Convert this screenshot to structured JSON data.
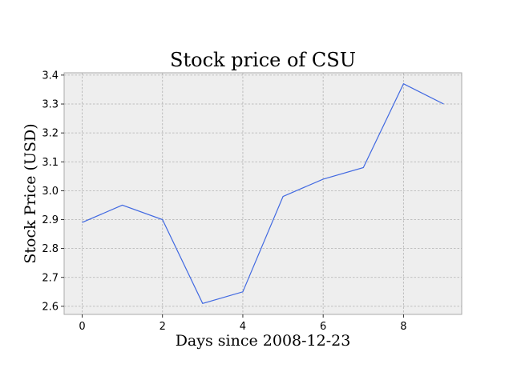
{
  "chart_data": {
    "type": "line",
    "title": "Stock price of CSU",
    "xlabel": "Days since 2008-12-23",
    "ylabel": "Stock Price (USD)",
    "x": [
      0,
      1,
      2,
      3,
      4,
      5,
      6,
      7,
      8,
      9
    ],
    "series": [
      {
        "values": [
          2.89,
          2.95,
          2.9,
          2.61,
          2.65,
          2.98,
          3.04,
          3.08,
          3.37,
          3.3
        ]
      }
    ],
    "xlim": [
      -0.45,
      9.45
    ],
    "ylim": [
      2.572,
      3.408
    ],
    "xticks": [
      0,
      2,
      4,
      6,
      8
    ],
    "xtick_labels": [
      "0",
      "2",
      "4",
      "6",
      "8"
    ],
    "yticks": [
      2.6,
      2.7,
      2.8,
      2.9,
      3.0,
      3.1,
      3.2,
      3.3,
      3.4
    ],
    "ytick_labels": [
      "2.6",
      "2.7",
      "2.8",
      "2.9",
      "3.0",
      "3.1",
      "3.2",
      "3.3",
      "3.4"
    ],
    "grid": true,
    "line_color": "#4169e1",
    "plot_background": "#eeeeee"
  }
}
